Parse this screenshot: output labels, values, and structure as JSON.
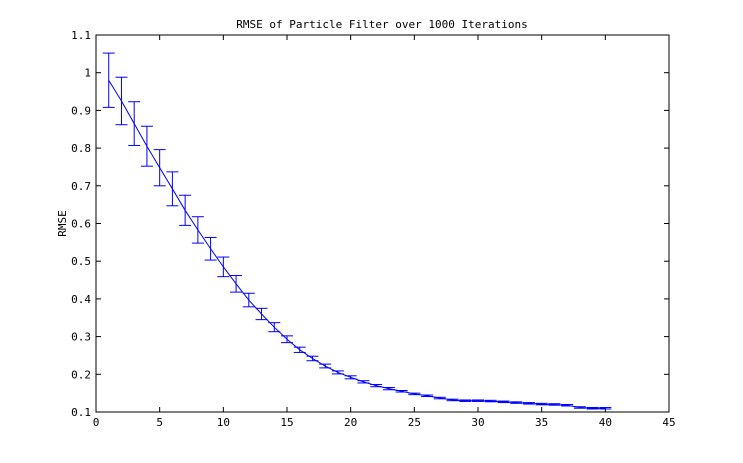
{
  "chart_data": {
    "type": "line",
    "title": "RMSE of Particle Filter over 1000 Iterations",
    "xlabel": "",
    "ylabel": "RMSE",
    "xlim": [
      0,
      45
    ],
    "ylim": [
      0.1,
      1.1
    ],
    "xticks": [
      0,
      5,
      10,
      15,
      20,
      25,
      30,
      35,
      40,
      45
    ],
    "yticks": [
      0.1,
      0.2,
      0.3,
      0.4,
      0.5,
      0.6,
      0.7,
      0.8,
      0.9,
      1,
      1.1
    ],
    "grid": false,
    "colors": {
      "series": "#0000ff",
      "axes": "#000000",
      "background": "#ffffff"
    },
    "series": [
      {
        "x": [
          1,
          2,
          3,
          4,
          5,
          6,
          7,
          8,
          9,
          10,
          11,
          12,
          13,
          14,
          15,
          16,
          17,
          18,
          19,
          20,
          21,
          22,
          23,
          24,
          25,
          26,
          27,
          28,
          29,
          30,
          31,
          32,
          33,
          34,
          35,
          36,
          37,
          38,
          39,
          40
        ],
        "y": [
          0.98,
          0.925,
          0.865,
          0.805,
          0.748,
          0.692,
          0.635,
          0.583,
          0.533,
          0.485,
          0.44,
          0.397,
          0.36,
          0.325,
          0.293,
          0.265,
          0.242,
          0.222,
          0.205,
          0.192,
          0.18,
          0.17,
          0.162,
          0.155,
          0.148,
          0.143,
          0.137,
          0.132,
          0.13,
          0.13,
          0.129,
          0.127,
          0.125,
          0.123,
          0.121,
          0.12,
          0.118,
          0.112,
          0.11,
          0.11
        ],
        "error": [
          0.072,
          0.063,
          0.058,
          0.053,
          0.048,
          0.045,
          0.04,
          0.035,
          0.03,
          0.026,
          0.022,
          0.018,
          0.015,
          0.012,
          0.009,
          0.007,
          0.006,
          0.005,
          0.004,
          0.004,
          0.003,
          0.003,
          0.003,
          0.002,
          0.002,
          0.002,
          0.002,
          0.002,
          0.002,
          0.002,
          0.002,
          0.002,
          0.002,
          0.002,
          0.002,
          0.002,
          0.002,
          0.002,
          0.002,
          0.002
        ]
      }
    ]
  }
}
